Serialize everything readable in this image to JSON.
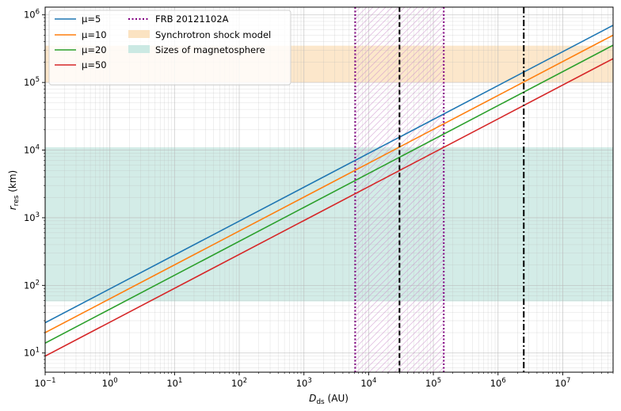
{
  "chart_data": {
    "type": "line",
    "xlabel_main": "D",
    "xlabel_sub": "ds",
    "xlabel_unit": " (AU)",
    "ylabel_main": "r",
    "ylabel_sub": "res",
    "ylabel_unit": " (km)",
    "x_scale": "log",
    "y_scale": "log",
    "xlim": [
      0.1,
      60000000
    ],
    "ylim": [
      5.2,
      1300000
    ],
    "grid": true,
    "legend_position": "top-left",
    "x_ticks": [
      {
        "value": 0.1,
        "base": "10",
        "exp": "−1"
      },
      {
        "value": 1,
        "base": "10",
        "exp": "0"
      },
      {
        "value": 10,
        "base": "10",
        "exp": "1"
      },
      {
        "value": 100,
        "base": "10",
        "exp": "2"
      },
      {
        "value": 1000,
        "base": "10",
        "exp": "3"
      },
      {
        "value": 10000,
        "base": "10",
        "exp": "4"
      },
      {
        "value": 100000,
        "base": "10",
        "exp": "5"
      },
      {
        "value": 1000000,
        "base": "10",
        "exp": "6"
      },
      {
        "value": 10000000,
        "base": "10",
        "exp": "7"
      }
    ],
    "y_ticks": [
      {
        "value": 10,
        "base": "10",
        "exp": "1"
      },
      {
        "value": 100,
        "base": "10",
        "exp": "2"
      },
      {
        "value": 1000,
        "base": "10",
        "exp": "3"
      },
      {
        "value": 10000,
        "base": "10",
        "exp": "4"
      },
      {
        "value": 100000,
        "base": "10",
        "exp": "5"
      },
      {
        "value": 1000000,
        "base": "10",
        "exp": "6"
      }
    ],
    "series": [
      {
        "name": "μ=5",
        "color": "#1f77b4",
        "x": [
          0.1,
          60000000
        ],
        "y": [
          28,
          700000
        ]
      },
      {
        "name": "μ=10",
        "color": "#ff7f0e",
        "x": [
          0.1,
          60000000
        ],
        "y": [
          20,
          500000
        ]
      },
      {
        "name": "μ=20",
        "color": "#2ca02c",
        "x": [
          0.1,
          60000000
        ],
        "y": [
          14,
          355000
        ]
      },
      {
        "name": "μ=50",
        "color": "#d62728",
        "x": [
          0.1,
          60000000
        ],
        "y": [
          9,
          225000
        ]
      }
    ],
    "bands": [
      {
        "name": "Synchrotron shock model",
        "color": "#fbe3c2",
        "y_range": [
          100000,
          350000
        ]
      },
      {
        "name": "Sizes of magnetosphere",
        "color": "#cbe9e3",
        "y_range": [
          58,
          11000
        ]
      }
    ],
    "frb": {
      "name": "FRB 20121102A",
      "color": "#800080",
      "x_range": [
        6200,
        145000
      ]
    },
    "vlines": [
      {
        "x": 30000,
        "style": "dashed",
        "color": "#000000"
      },
      {
        "x": 2500000,
        "style": "dashdot",
        "color": "#000000"
      }
    ]
  }
}
